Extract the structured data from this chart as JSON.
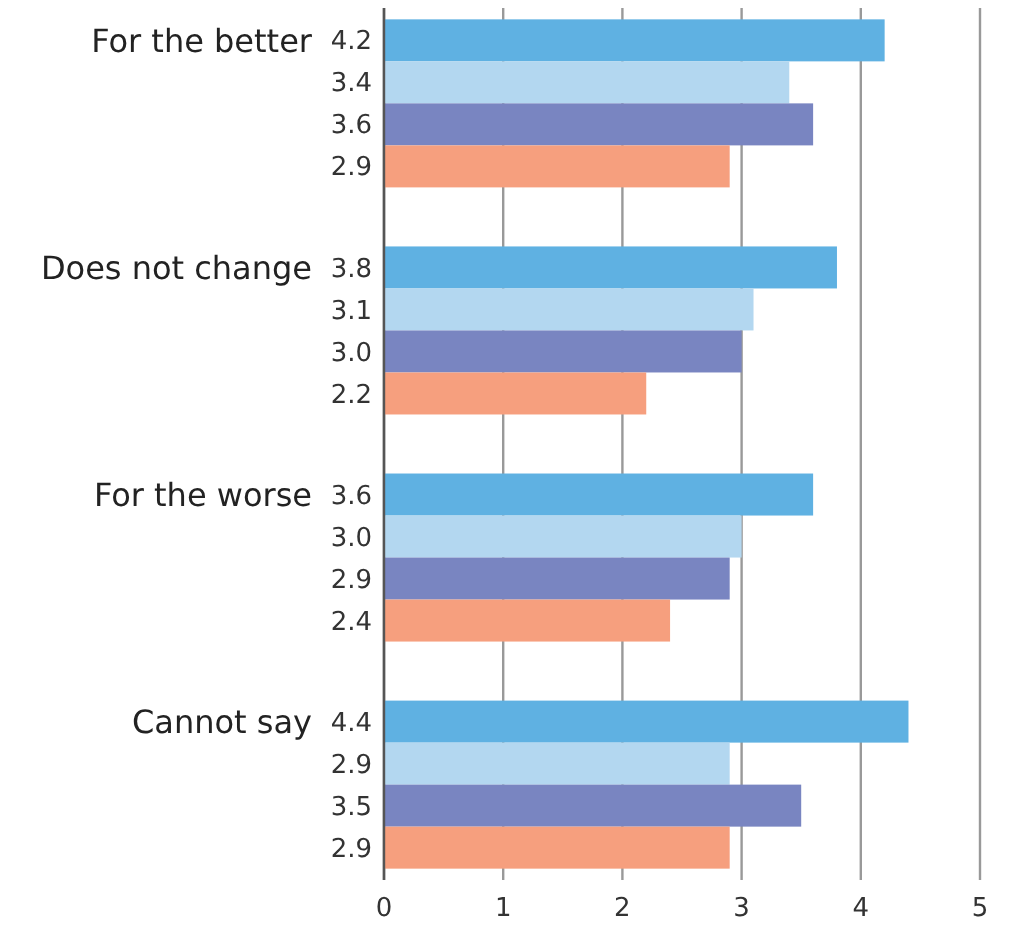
{
  "chart_data": {
    "type": "bar",
    "orientation": "horizontal",
    "categories": [
      "For the better",
      "Does not change",
      "For the worse",
      "Cannot say"
    ],
    "series": [
      {
        "color": "#5fb1e2",
        "values": [
          4.2,
          3.8,
          3.6,
          4.4
        ],
        "value_labels": [
          "4.2",
          "3.8",
          "3.6",
          "4.4"
        ]
      },
      {
        "color": "#b3d7f0",
        "values": [
          3.4,
          3.1,
          3.0,
          2.9
        ],
        "value_labels": [
          "3.4",
          "3.1",
          "3.0",
          "2.9"
        ]
      },
      {
        "color": "#7985c1",
        "values": [
          3.6,
          3.0,
          2.9,
          3.5
        ],
        "value_labels": [
          "3.6",
          "3.0",
          "2.9",
          "3.5"
        ]
      },
      {
        "color": "#f69f7e",
        "values": [
          2.9,
          2.2,
          2.4,
          2.9
        ],
        "value_labels": [
          "2.9",
          "2.2",
          "2.4",
          "2.9"
        ]
      }
    ],
    "xlim": [
      0,
      5
    ],
    "xticks": [
      0,
      1,
      2,
      3,
      4,
      5
    ],
    "grid": "x"
  }
}
